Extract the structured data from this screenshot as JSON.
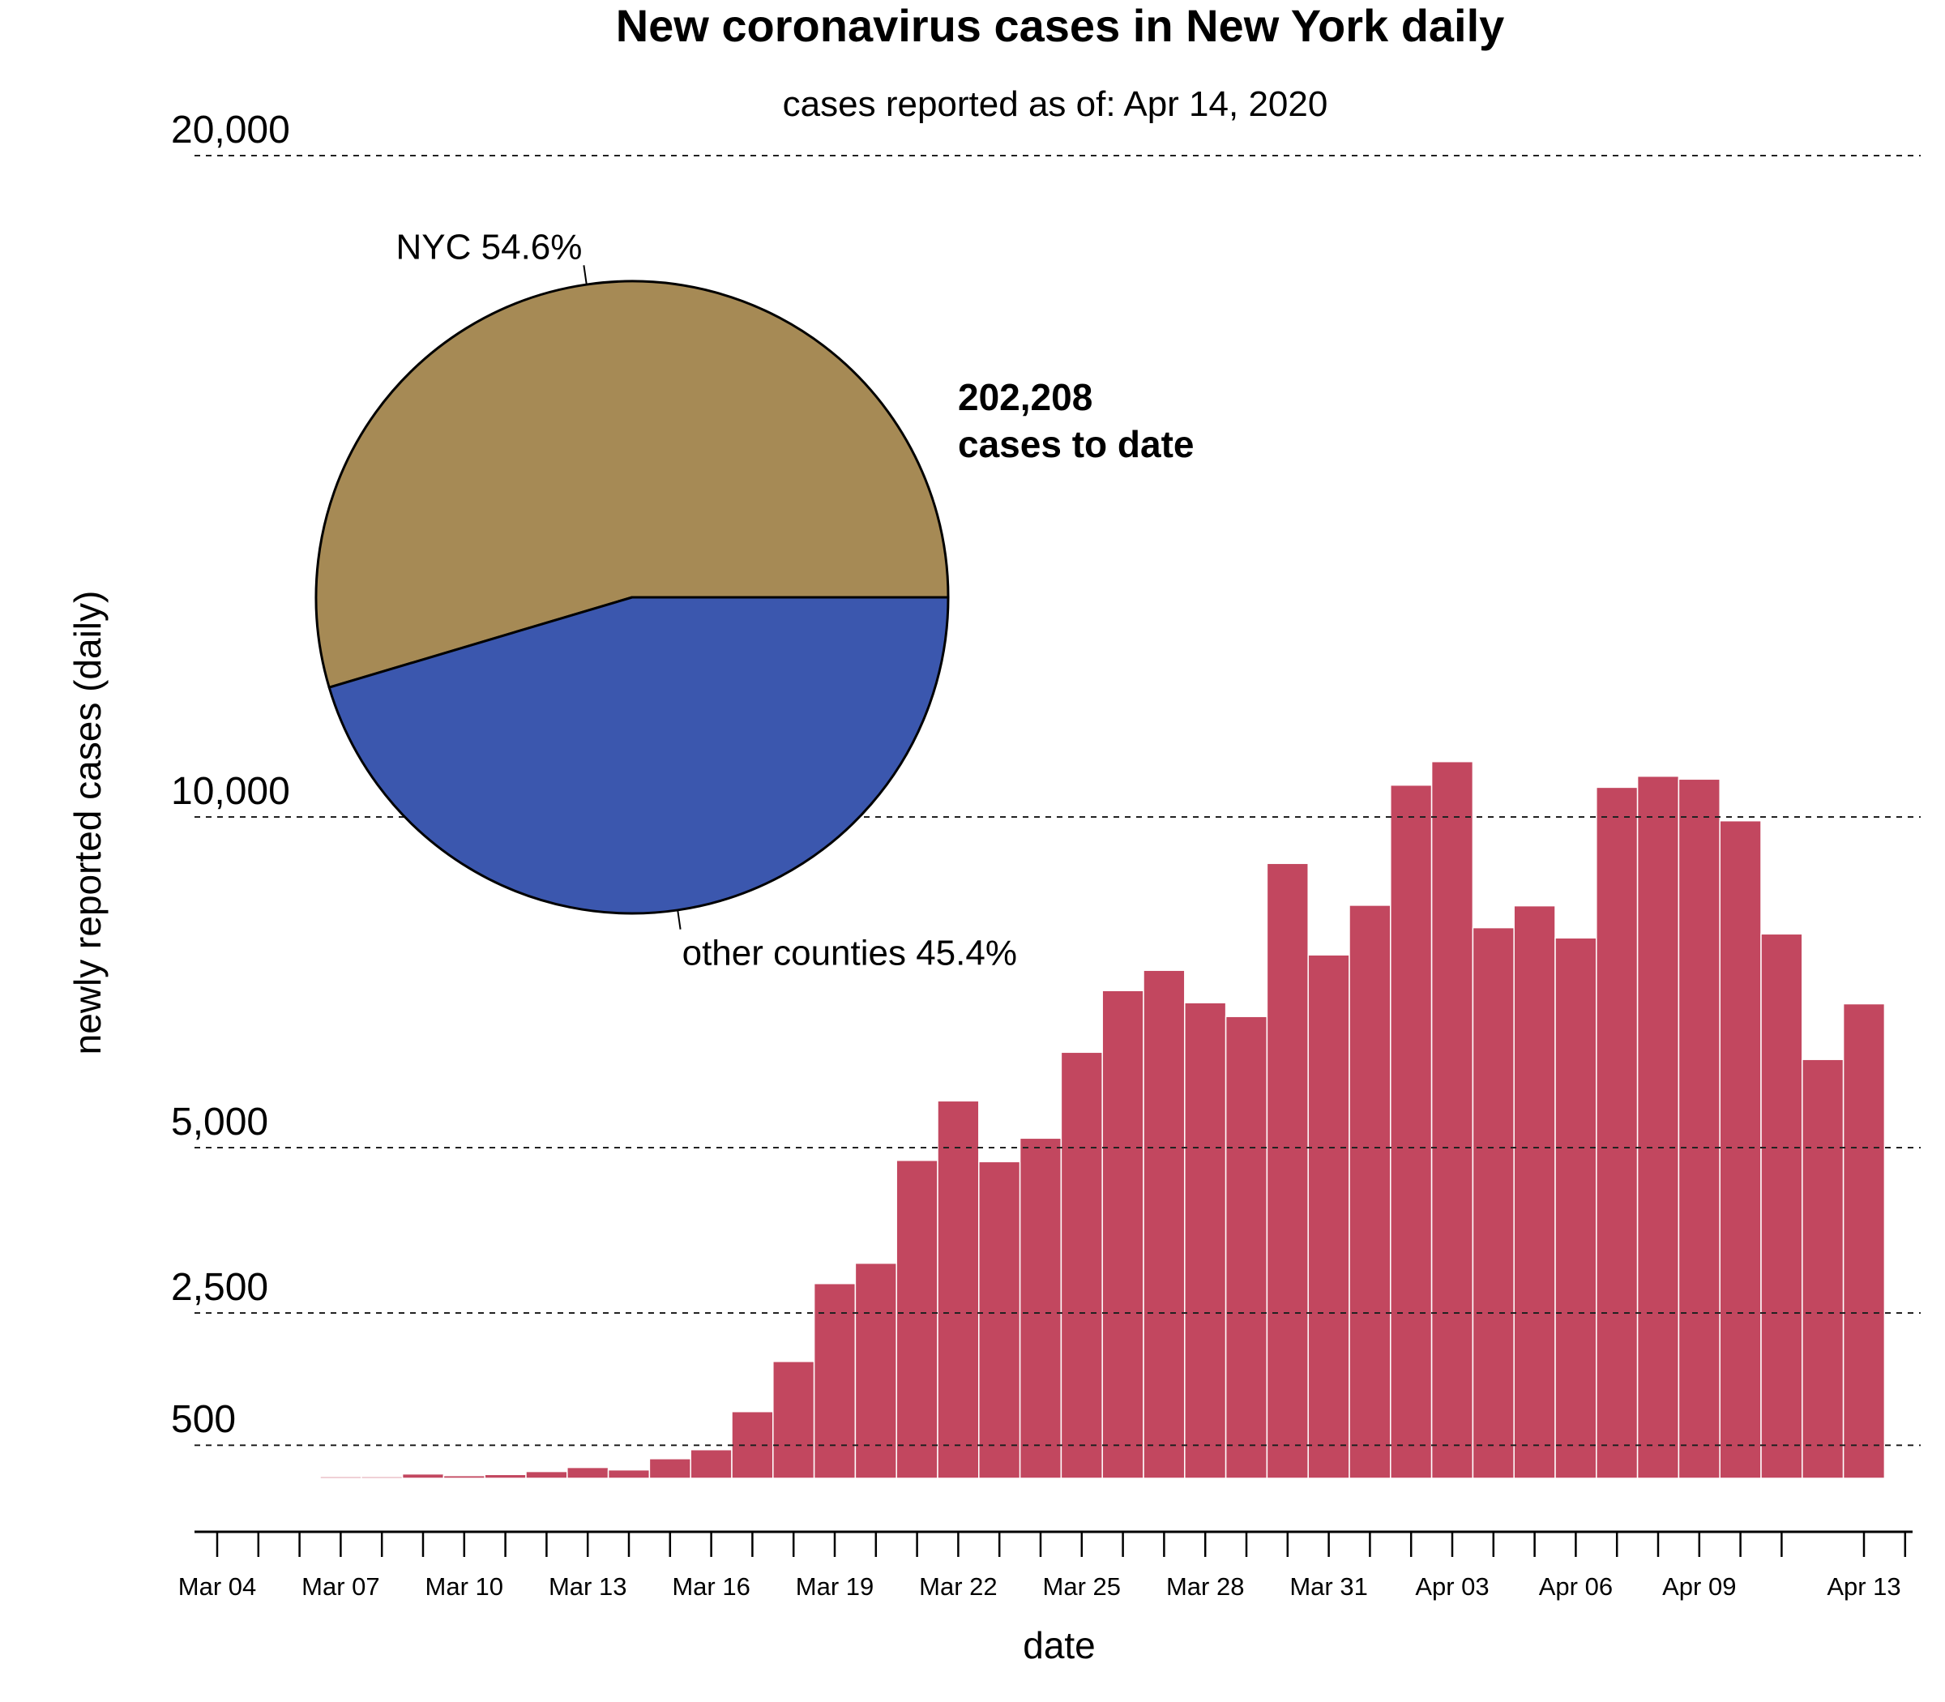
{
  "chart_data": {
    "type": "bar",
    "title": "New coronavirus cases in New York daily",
    "subtitle": "cases reported as of: Apr 14, 2020",
    "xlabel": "date",
    "ylabel": "newly reported cases (daily)",
    "ylim": [
      0,
      20000
    ],
    "grid": true,
    "ytick_values": [
      500,
      2500,
      5000,
      10000,
      20000
    ],
    "ytick_labels": [
      "500",
      "2,500",
      "5,000",
      "10,000",
      "20,000"
    ],
    "xtick_dates": [
      "Mar 04",
      "Mar 05",
      "Mar 06",
      "Mar 07",
      "Mar 08",
      "Mar 09",
      "Mar 10",
      "Mar 11",
      "Mar 12",
      "Mar 13",
      "Mar 14",
      "Mar 15",
      "Mar 16",
      "Mar 17",
      "Mar 18",
      "Mar 19",
      "Mar 20",
      "Mar 21",
      "Mar 22",
      "Mar 23",
      "Mar 24",
      "Mar 25",
      "Mar 26",
      "Mar 27",
      "Mar 28",
      "Mar 29",
      "Mar 30",
      "Mar 31",
      "Apr 01",
      "Apr 02",
      "Apr 03",
      "Apr 04",
      "Apr 05",
      "Apr 06",
      "Apr 07",
      "Apr 08",
      "Apr 09",
      "Apr 10",
      "Apr 11",
      "Apr 12",
      "Apr 13",
      "Apr 14"
    ],
    "xtick_missing": [
      "Apr 12"
    ],
    "xtick_labels": [
      "Mar 04",
      "Mar 07",
      "Mar 10",
      "Mar 13",
      "Mar 16",
      "Mar 19",
      "Mar 22",
      "Mar 25",
      "Mar 28",
      "Mar 31",
      "Apr 03",
      "Apr 06",
      "Apr 09",
      "Apr 13"
    ],
    "categories": [
      "Mar 05",
      "Mar 06",
      "Mar 07",
      "Mar 08",
      "Mar 09",
      "Mar 10",
      "Mar 11",
      "Mar 12",
      "Mar 13",
      "Mar 14",
      "Mar 15",
      "Mar 16",
      "Mar 17",
      "Mar 18",
      "Mar 19",
      "Mar 20",
      "Mar 21",
      "Mar 22",
      "Mar 23",
      "Mar 24",
      "Mar 25",
      "Mar 26",
      "Mar 27",
      "Mar 28",
      "Mar 29",
      "Mar 30",
      "Mar 31",
      "Apr 01",
      "Apr 02",
      "Apr 03",
      "Apr 04",
      "Apr 05",
      "Apr 06",
      "Apr 07",
      "Apr 08",
      "Apr 09",
      "Apr 10",
      "Apr 11",
      "Apr 12",
      "Apr 13"
    ],
    "values": [
      16,
      8,
      25,
      25,
      66,
      41,
      57,
      103,
      164,
      127,
      297,
      432,
      1008,
      1767,
      2945,
      3252,
      4808,
      5707,
      4788,
      5143,
      6443,
      7375,
      7681,
      7191,
      6983,
      9298,
      7914,
      8665,
      10482,
      10837,
      8326,
      8657,
      8171,
      10449,
      10617,
      10572,
      9943,
      8232,
      6333,
      7175
    ],
    "bar_color": "#C2475F",
    "inset_pie": {
      "type": "pie",
      "slices": [
        {
          "label": "NYC",
          "percent": 54.6,
          "display": "NYC 54.6%",
          "color": "#A68A55"
        },
        {
          "label": "other counties",
          "percent": 45.4,
          "display": "other counties 45.4%",
          "color": "#3B57AE"
        }
      ],
      "total_value": "202,208",
      "total_caption": "cases to date"
    }
  }
}
